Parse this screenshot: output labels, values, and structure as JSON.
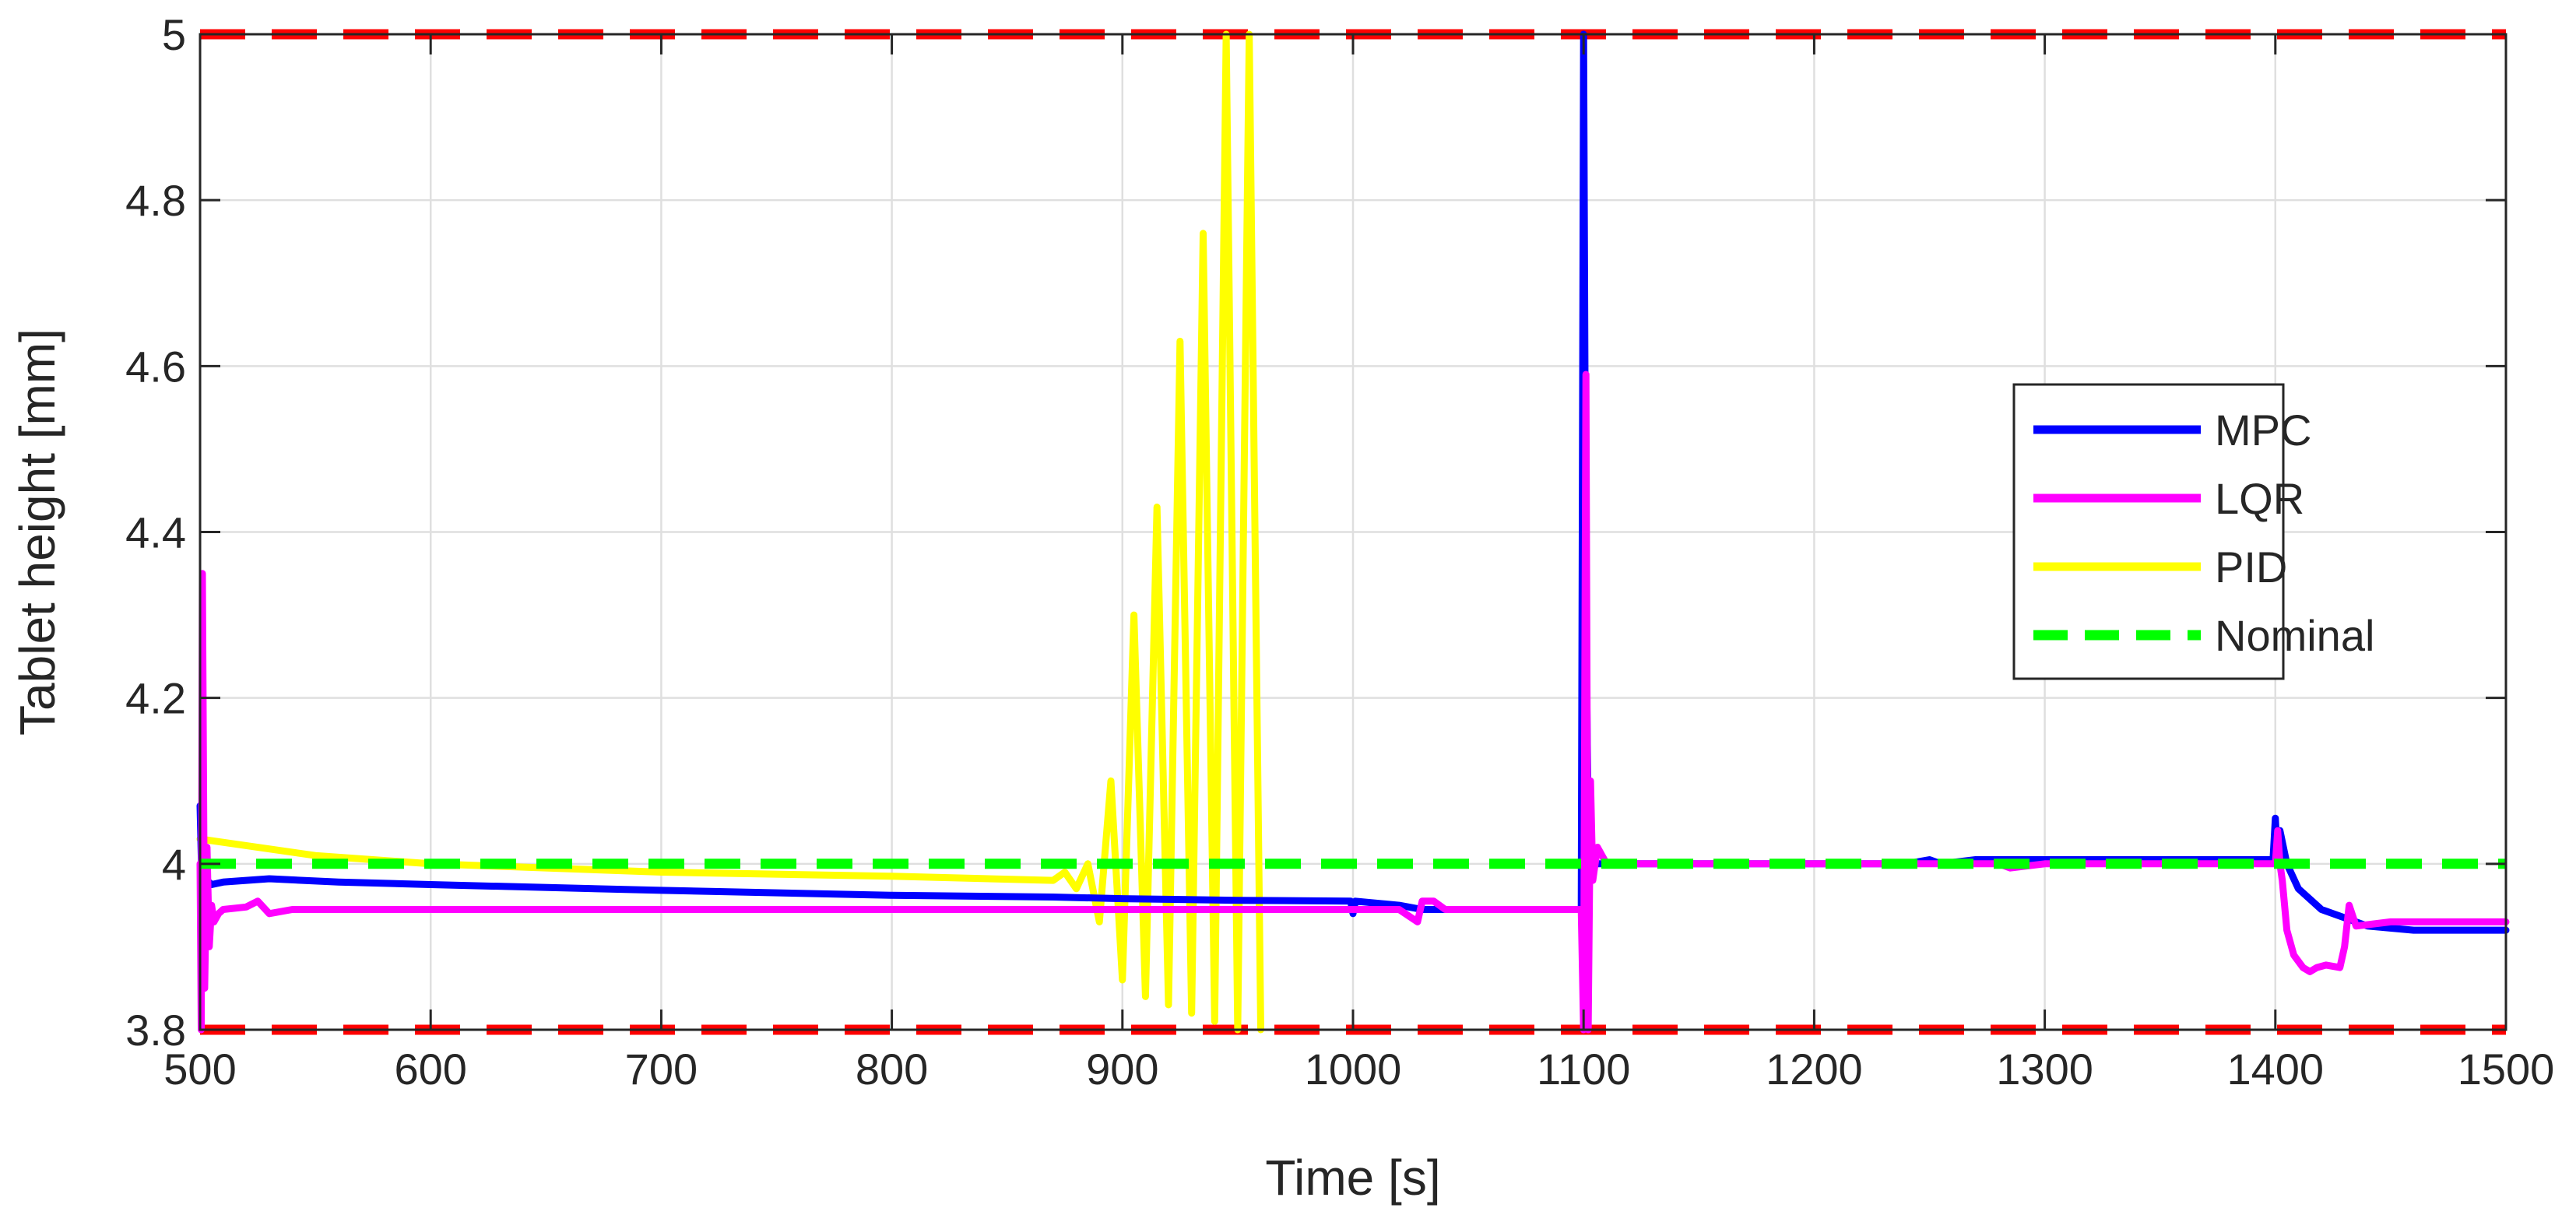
{
  "chart_data": {
    "type": "line",
    "title": "",
    "xlabel": "Time [s]",
    "ylabel": "Tablet height [mm]",
    "xlim": [
      500,
      1500
    ],
    "ylim": [
      3.8,
      5
    ],
    "xticks": [
      500,
      600,
      700,
      800,
      900,
      1000,
      1100,
      1200,
      1300,
      1400,
      1500
    ],
    "xtick_labels": [
      "500",
      "600",
      "700",
      "800",
      "900",
      "1000",
      "1100",
      "1200",
      "1300",
      "1400",
      "1500"
    ],
    "yticks": [
      3.8,
      4,
      4.2,
      4.4,
      4.6,
      4.8,
      5
    ],
    "ytick_labels": [
      "3.8",
      "4",
      "4.2",
      "4.4",
      "4.6",
      "4.8",
      "5"
    ],
    "grid": true,
    "legend_position": "right",
    "limits": {
      "upper": 5,
      "lower": 3.8,
      "color": "#ff0000"
    },
    "series": [
      {
        "name": "MPC",
        "color": "#0000ff",
        "style": "solid",
        "x": [
          500,
          501,
          503,
          505,
          510,
          520,
          530,
          560,
          600,
          700,
          800,
          870,
          900,
          950,
          999,
          1000,
          1001,
          1020,
          1030,
          1040,
          1098,
          1099,
          1100,
          1101,
          1102,
          1103,
          1105,
          1110,
          1150,
          1200,
          1240,
          1250,
          1255,
          1270,
          1300,
          1350,
          1398,
          1399,
          1400,
          1401,
          1402,
          1405,
          1410,
          1420,
          1430,
          1440,
          1460,
          1500
        ],
        "y": [
          4.07,
          3.95,
          3.98,
          3.975,
          3.978,
          3.98,
          3.982,
          3.978,
          3.975,
          3.968,
          3.962,
          3.96,
          3.958,
          3.956,
          3.955,
          3.94,
          3.955,
          3.95,
          3.945,
          3.945,
          3.945,
          3.945,
          5.0,
          4.3,
          4.05,
          3.99,
          4.0,
          4.0,
          4.0,
          4.0,
          4.0,
          4.005,
          4.0,
          4.005,
          4.005,
          4.005,
          4.005,
          4.005,
          4.055,
          4.0,
          4.04,
          4.0,
          3.97,
          3.945,
          3.935,
          3.925,
          3.92,
          3.92
        ]
      },
      {
        "name": "LQR",
        "color": "#ff00ff",
        "style": "solid",
        "x": [
          500,
          500.5,
          501,
          502,
          503,
          504,
          505,
          506,
          508,
          510,
          520,
          525,
          530,
          540,
          550,
          600,
          700,
          800,
          900,
          1000,
          1020,
          1028,
          1030,
          1035,
          1040,
          1098,
          1099,
          1100,
          1101,
          1102,
          1103,
          1104,
          1106,
          1110,
          1200,
          1280,
          1285,
          1300,
          1398,
          1399,
          1400,
          1401,
          1402,
          1403,
          1405,
          1408,
          1412,
          1415,
          1418,
          1422,
          1428,
          1430,
          1432,
          1435,
          1450,
          1500
        ],
        "y": [
          4.0,
          3.8,
          4.35,
          3.85,
          4.02,
          3.9,
          3.95,
          3.93,
          3.94,
          3.945,
          3.948,
          3.955,
          3.94,
          3.945,
          3.945,
          3.945,
          3.945,
          3.945,
          3.945,
          3.945,
          3.945,
          3.93,
          3.955,
          3.955,
          3.945,
          3.945,
          3.945,
          3.8,
          4.59,
          3.8,
          4.1,
          3.98,
          4.02,
          4.0,
          4.0,
          4.0,
          3.995,
          4.0,
          4.0,
          4.0,
          4.0,
          4.04,
          4.0,
          3.98,
          3.92,
          3.89,
          3.875,
          3.87,
          3.875,
          3.878,
          3.875,
          3.9,
          3.95,
          3.925,
          3.93,
          3.93
        ]
      },
      {
        "name": "PID",
        "color": "#ffff00",
        "style": "solid",
        "x": [
          500,
          550,
          600,
          700,
          800,
          870,
          875,
          880,
          885,
          890,
          895,
          900,
          905,
          910,
          915,
          920,
          925,
          930,
          935,
          940,
          945,
          950,
          955,
          960
        ],
        "y": [
          4.03,
          4.01,
          4.0,
          3.99,
          3.985,
          3.98,
          3.99,
          3.97,
          4.0,
          3.93,
          4.1,
          3.86,
          4.3,
          3.84,
          4.43,
          3.83,
          4.63,
          3.82,
          4.76,
          3.81,
          5.0,
          3.8,
          5.0,
          3.8
        ]
      },
      {
        "name": "Nominal",
        "color": "#00ff00",
        "style": "dashed",
        "x": [
          500,
          1500
        ],
        "y": [
          4.0,
          4.0
        ]
      }
    ]
  }
}
